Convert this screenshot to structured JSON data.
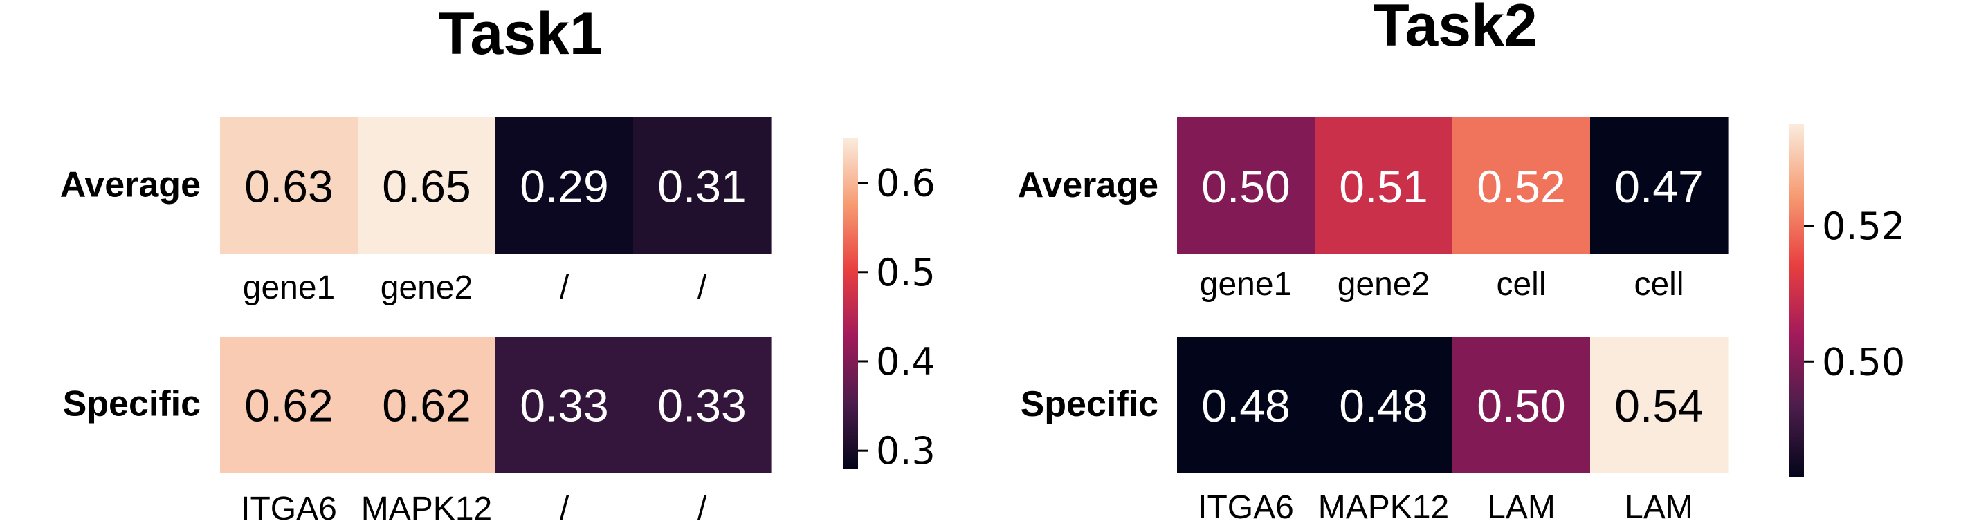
{
  "chart_data": [
    {
      "type": "heatmap",
      "title": "Task1",
      "rows": [
        {
          "label": "Average",
          "values": [
            0.63,
            0.65,
            0.29,
            0.31
          ],
          "value_labels": [
            "0.63",
            "0.65",
            "0.29",
            "0.31"
          ],
          "column_labels": [
            "gene1",
            "gene2",
            "/",
            "/"
          ]
        },
        {
          "label": "Specific",
          "values": [
            0.62,
            0.62,
            0.33,
            0.33
          ],
          "value_labels": [
            "0.62",
            "0.62",
            "0.33",
            "0.33"
          ],
          "column_labels": [
            "ITGA6",
            "MAPK12",
            "/",
            "/"
          ]
        }
      ],
      "colorbar": {
        "range": [
          0.28,
          0.65
        ],
        "ticks": [
          0.3,
          0.4,
          0.5,
          0.6
        ],
        "tick_labels": [
          "0.3",
          "0.4",
          "0.5",
          "0.6"
        ],
        "colormap": "rocket"
      }
    },
    {
      "type": "heatmap",
      "title": "Task2",
      "rows": [
        {
          "label": "Average",
          "values": [
            0.5,
            0.51,
            0.52,
            0.47
          ],
          "value_labels": [
            "0.50",
            "0.51",
            "0.52",
            "0.47"
          ],
          "column_labels": [
            "gene1",
            "gene2",
            "cell",
            "cell"
          ]
        },
        {
          "label": "Specific",
          "values": [
            0.48,
            0.48,
            0.5,
            0.54
          ],
          "value_labels": [
            "0.48",
            "0.48",
            "0.50",
            "0.54"
          ],
          "column_labels": [
            "ITGA6",
            "MAPK12",
            "LAM",
            "LAM"
          ]
        }
      ],
      "colorbar": {
        "range": [
          0.483,
          0.535
        ],
        "ticks": [
          0.5,
          0.52
        ],
        "tick_labels": [
          "0.50",
          "0.52"
        ],
        "colormap": "rocket"
      }
    }
  ],
  "colors": {
    "text_dark": "#000000",
    "text_light": "#ffffff",
    "colormap_stops": [
      "#03051a",
      "#4c1d4b",
      "#a11a5b",
      "#e83f3f",
      "#f69c73",
      "#faebdd"
    ]
  }
}
